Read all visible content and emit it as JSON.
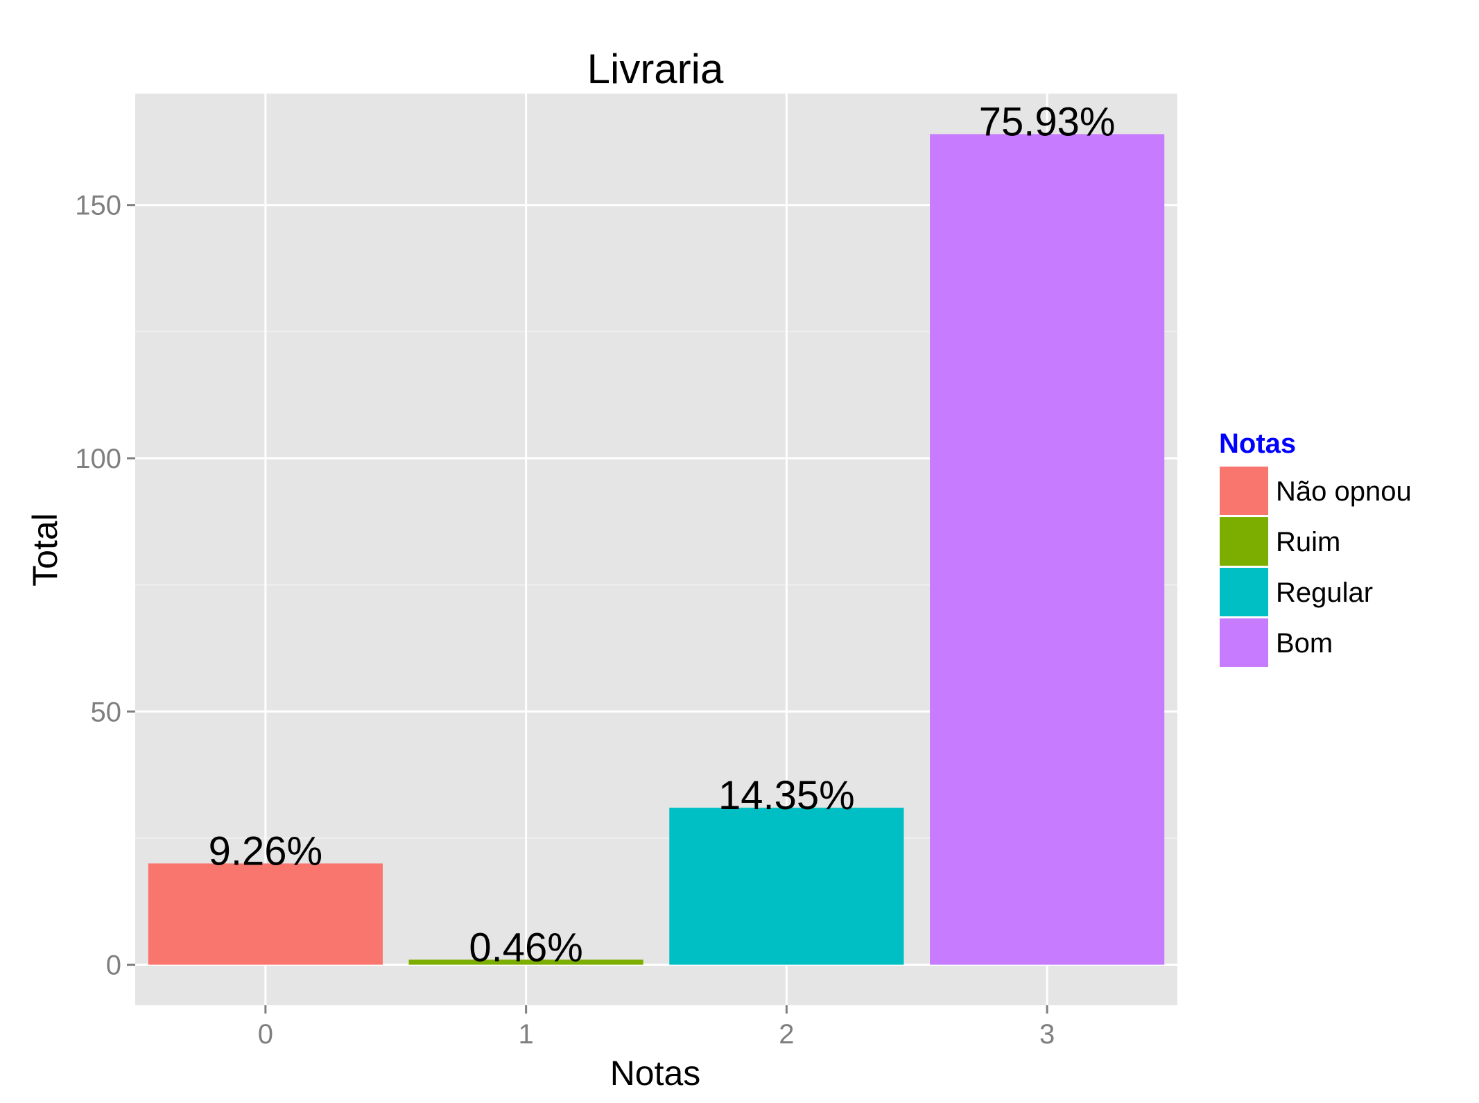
{
  "chart_data": {
    "type": "bar",
    "title": "Livraria",
    "xlabel": "Notas",
    "ylabel": "Total",
    "categories": [
      "0",
      "1",
      "2",
      "3"
    ],
    "values": [
      20,
      1,
      31,
      164
    ],
    "data_labels": [
      "9.26%",
      "0.46%",
      "14.35%",
      "75.93%"
    ],
    "ylim": [
      -8,
      172
    ],
    "yticks": [
      0,
      50,
      100,
      150
    ],
    "ytick_labels": [
      "0",
      "50",
      "100",
      "150"
    ],
    "grid": true,
    "legend": {
      "title": "Notas",
      "placement": "right",
      "items": [
        {
          "label": "Não opnou",
          "color": "#F8766D"
        },
        {
          "label": "Ruim",
          "color": "#7CAE00"
        },
        {
          "label": "Regular",
          "color": "#00BFC4"
        },
        {
          "label": "Bom",
          "color": "#C77CFF"
        }
      ]
    },
    "bar_colors": [
      "#F8766D",
      "#7CAE00",
      "#00BFC4",
      "#C77CFF"
    ],
    "colors": {
      "panel_background": "#E5E5E5",
      "grid_major": "#FFFFFF",
      "grid_minor": "#F2F2F2",
      "tick_text": "#7F7F7F",
      "legend_title": "#0000FF"
    }
  }
}
